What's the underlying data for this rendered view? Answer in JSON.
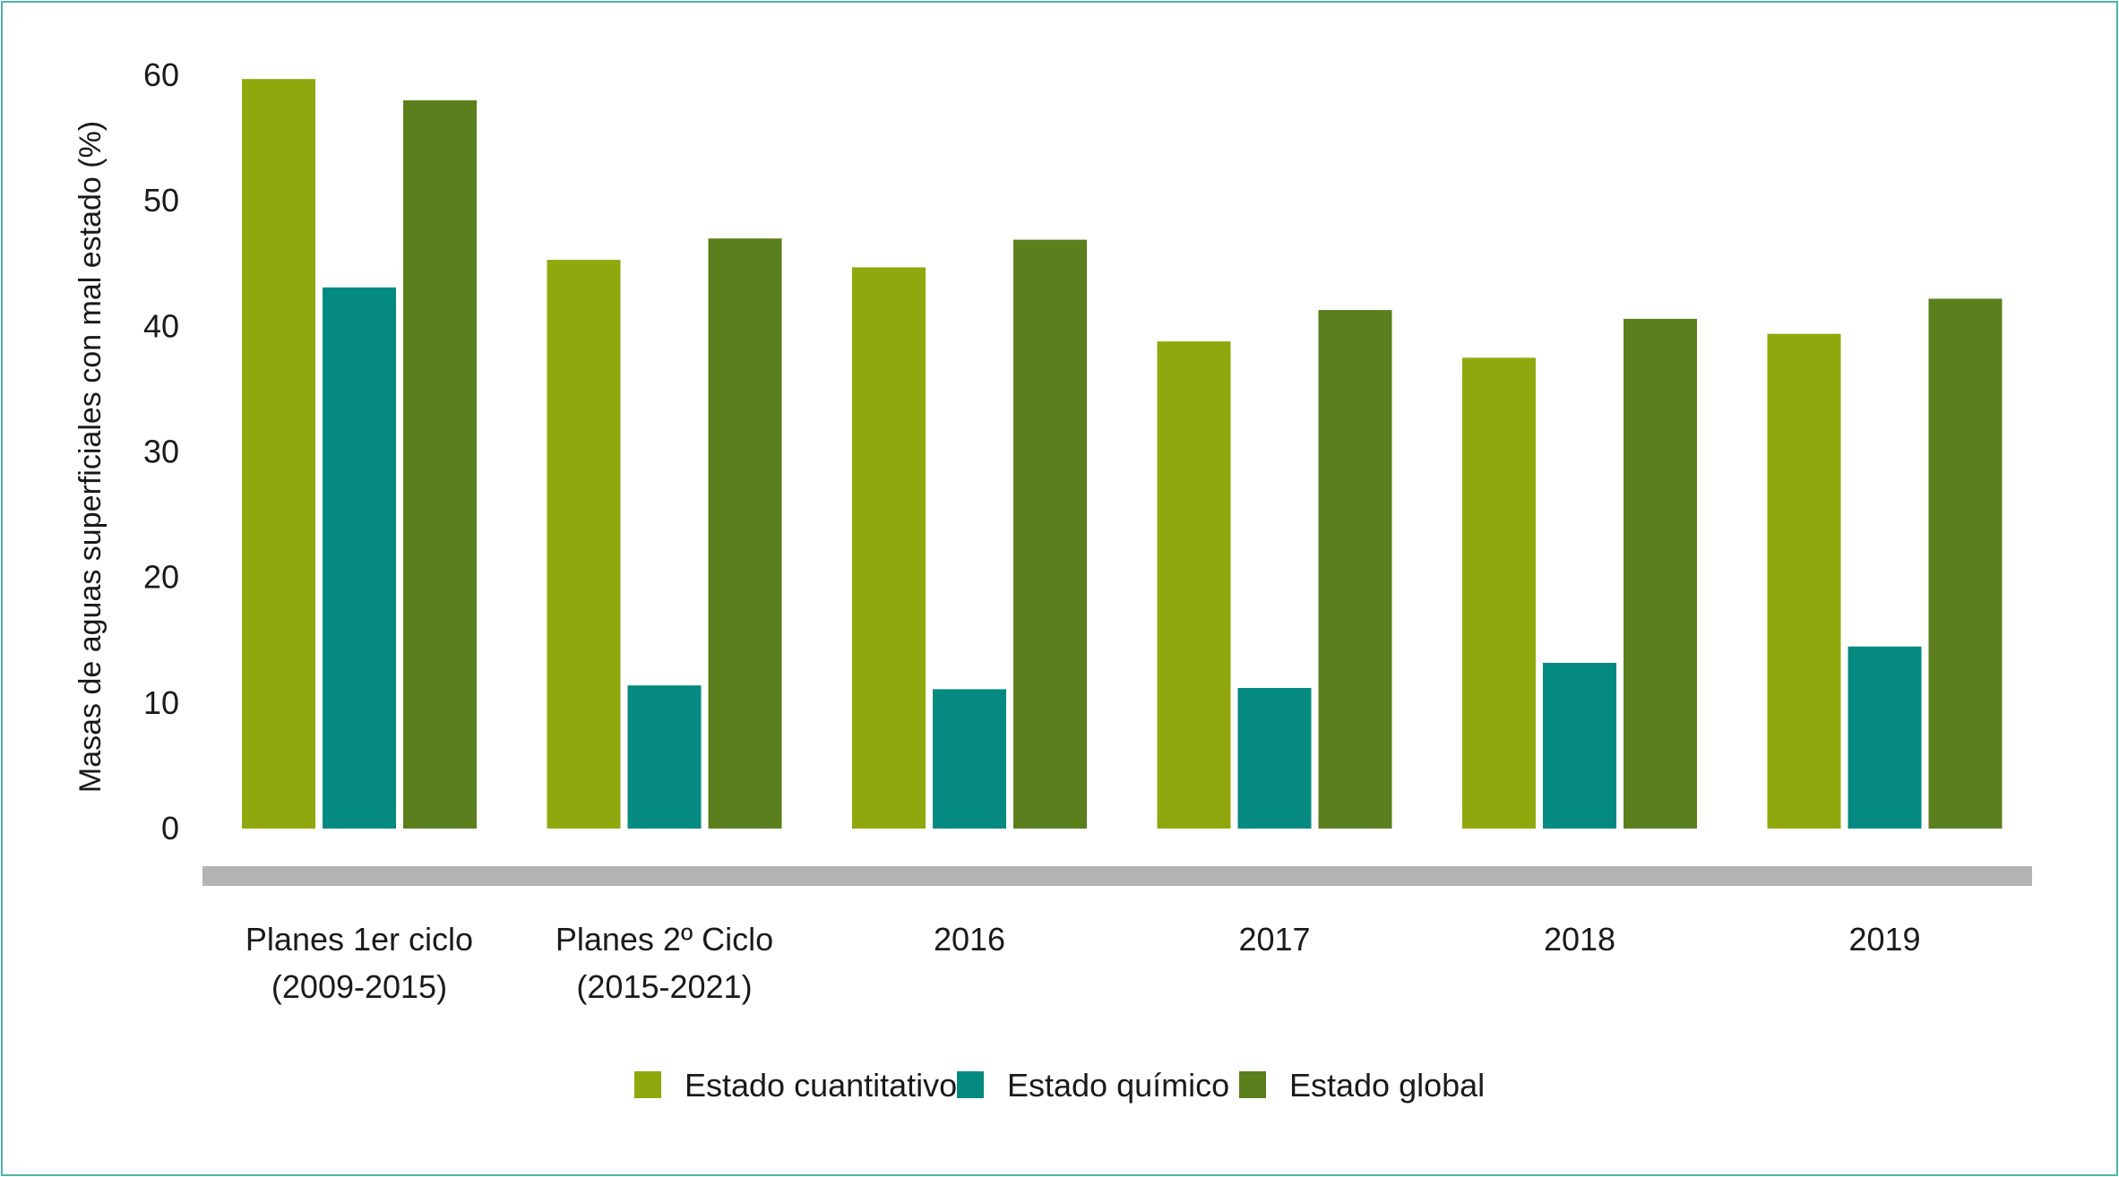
{
  "chart_data": {
    "type": "bar",
    "title": "",
    "xlabel": "",
    "ylabel": "Masas de aguas superficiales con mal estado (%)",
    "ylim": [
      0,
      60
    ],
    "yticks": [
      "0",
      "10",
      "20",
      "30",
      "40",
      "50",
      "60"
    ],
    "categories": [
      [
        "Planes 1er ciclo",
        "(2009-2015)"
      ],
      [
        "Planes 2º Ciclo",
        "(2015-2021)"
      ],
      [
        "2016"
      ],
      [
        "2017"
      ],
      [
        "2018"
      ],
      [
        "2019"
      ]
    ],
    "series": [
      {
        "name": "Estado cuantitativo",
        "color": "#90a80e",
        "values": [
          59.7,
          45.3,
          44.7,
          38.8,
          37.5,
          39.4
        ]
      },
      {
        "name": "Estado químico",
        "color": "#048a80",
        "values": [
          43.1,
          11.4,
          11.1,
          11.2,
          13.2,
          14.5
        ]
      },
      {
        "name": "Estado global",
        "color": "#5a7f1c",
        "values": [
          58.0,
          47.0,
          46.9,
          41.3,
          40.6,
          42.2
        ]
      }
    ],
    "grid": false,
    "legend_position": "bottom-center",
    "axis_bar_color": "#b3b3b3"
  }
}
